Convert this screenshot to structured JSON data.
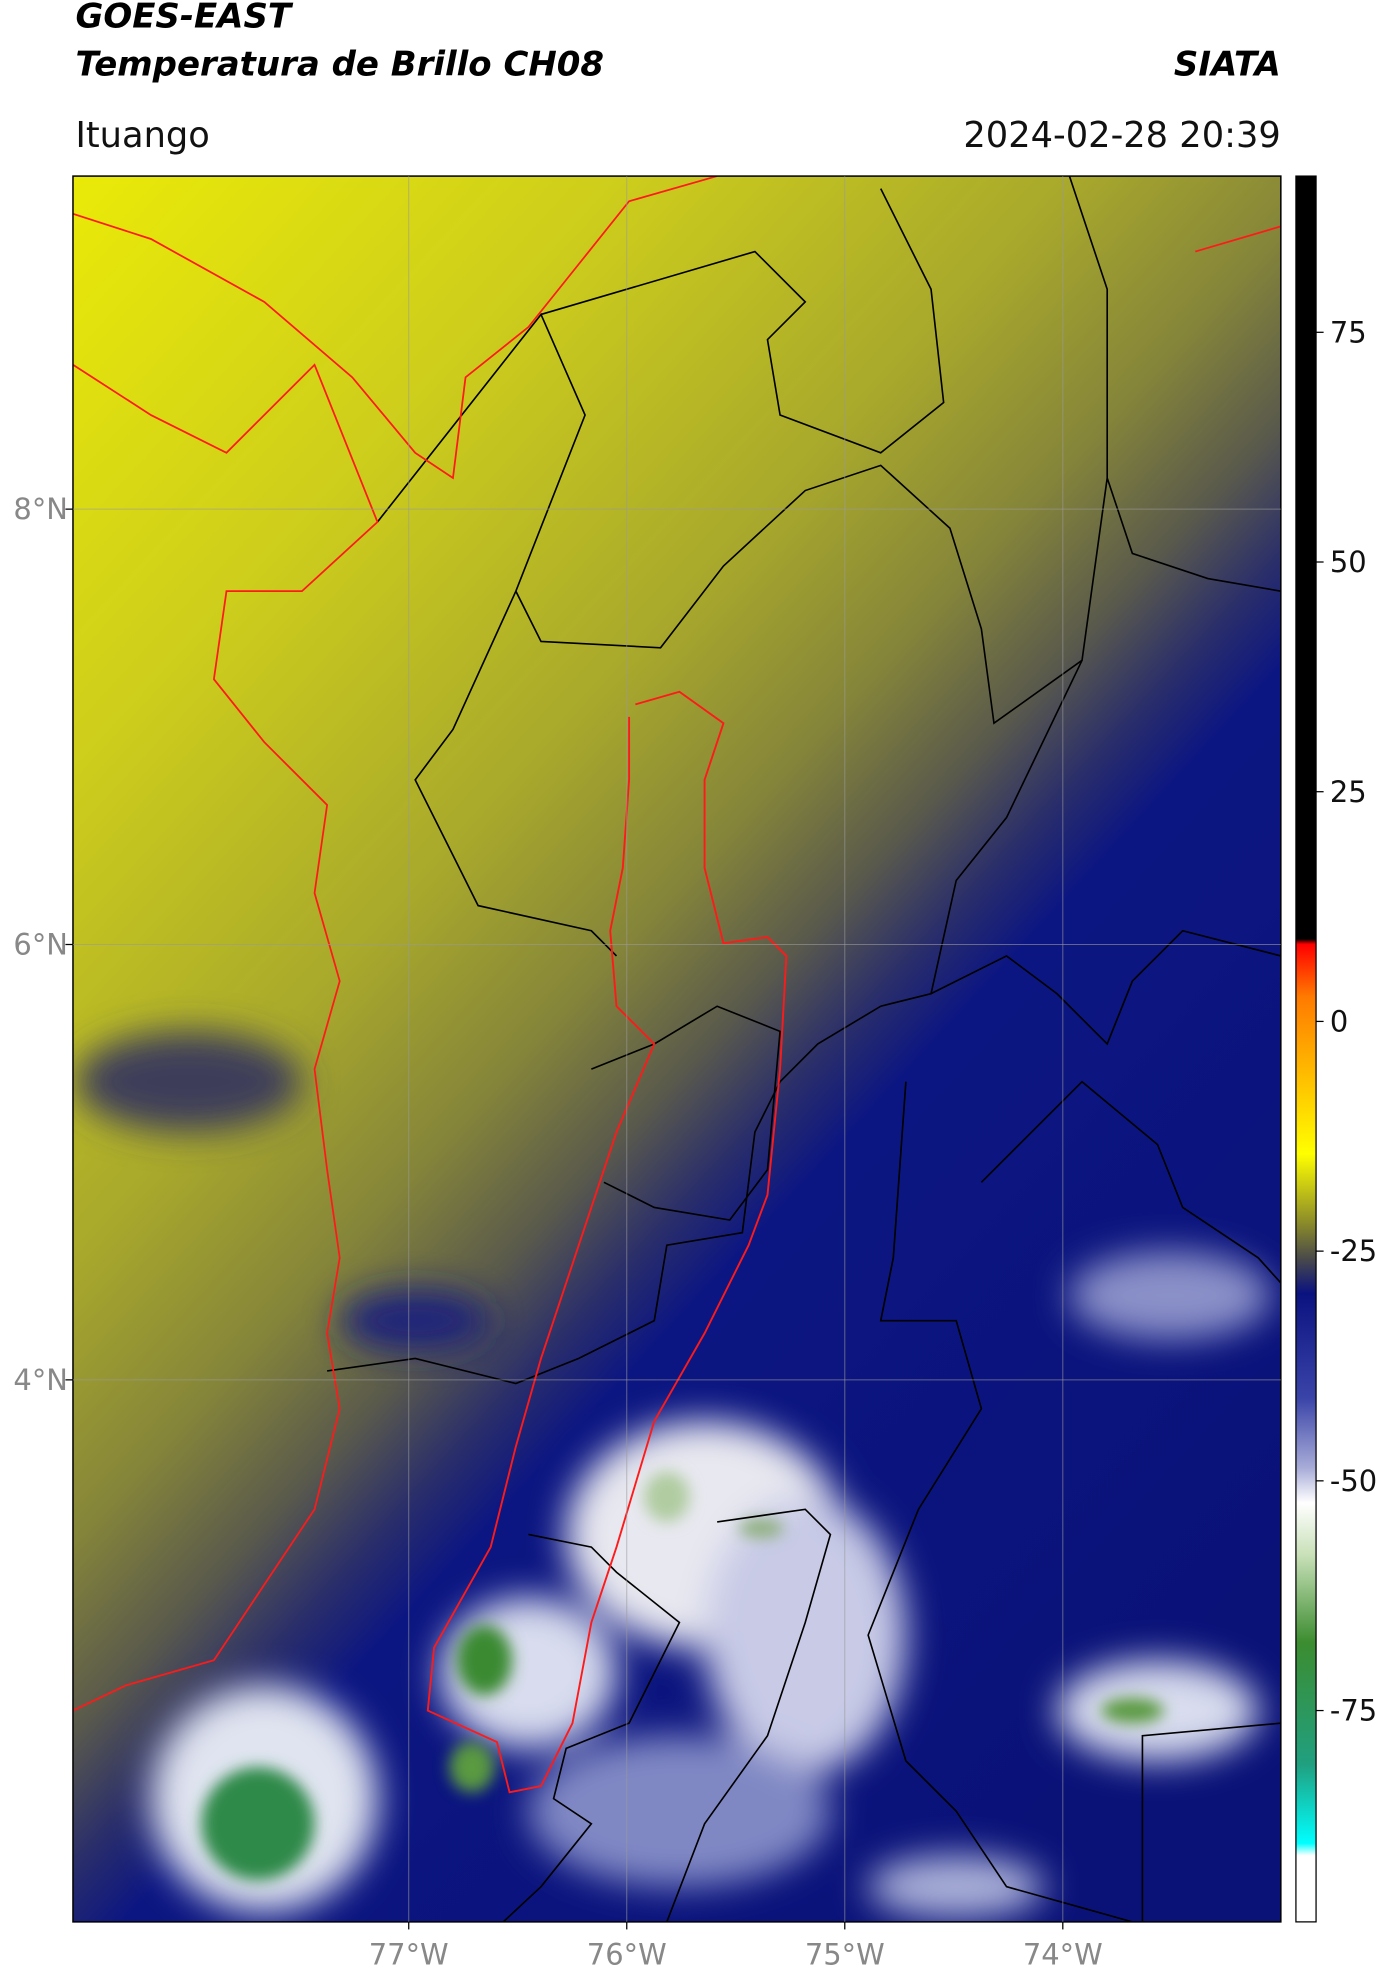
{
  "header": {
    "title": "GOES-EAST",
    "subtitle": "Temperatura de Brillo CH08",
    "source": "SIATA",
    "location": "Ituango",
    "datetime": "2024-02-28 20:39"
  },
  "map": {
    "xlim": [
      -78.54,
      -73.0
    ],
    "ylim": [
      1.51,
      9.53
    ],
    "xticks": [
      {
        "value": -77,
        "label": "77°W"
      },
      {
        "value": -76,
        "label": "76°W"
      },
      {
        "value": -75,
        "label": "75°W"
      },
      {
        "value": -74,
        "label": "74°W"
      }
    ],
    "yticks": [
      {
        "value": 8,
        "label": "8°N"
      },
      {
        "value": 6,
        "label": "6°N"
      },
      {
        "value": 4,
        "label": "4°N"
      }
    ],
    "grid": true
  },
  "colorbar": {
    "lim": [
      -98,
      92
    ],
    "ticks": [
      75,
      50,
      25,
      0,
      -25,
      -50,
      -75
    ]
  }
}
